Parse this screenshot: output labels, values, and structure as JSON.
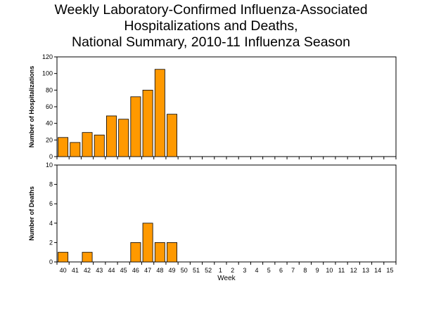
{
  "title_lines": [
    "Weekly Laboratory-Confirmed Influenza-Associated",
    "Hospitalizations and Deaths,",
    "National Summary, 2010-11 Influenza Season"
  ],
  "colors": {
    "bar_fill": "#FF9900",
    "bar_stroke": "#000000",
    "plot_border": "#000000"
  },
  "chart_data": [
    {
      "type": "bar",
      "title": "",
      "xlabel": "",
      "ylabel": "Number of Hospitalizations",
      "ylim": [
        0,
        120
      ],
      "yticks": [
        0,
        20,
        40,
        60,
        80,
        100,
        120
      ],
      "categories": [
        "40",
        "41",
        "42",
        "43",
        "44",
        "45",
        "46",
        "47",
        "48",
        "49",
        "50",
        "51",
        "52",
        "1",
        "2",
        "3",
        "4",
        "5",
        "6",
        "7",
        "8",
        "9",
        "10",
        "11",
        "12",
        "13",
        "14",
        "15"
      ],
      "values": [
        23,
        17,
        29,
        26,
        49,
        45,
        72,
        80,
        105,
        51,
        null,
        null,
        null,
        null,
        null,
        null,
        null,
        null,
        null,
        null,
        null,
        null,
        null,
        null,
        null,
        null,
        null,
        null
      ],
      "grid": false
    },
    {
      "type": "bar",
      "title": "",
      "xlabel": "Week",
      "ylabel": "Number of Deaths",
      "ylim": [
        0,
        10
      ],
      "yticks": [
        0,
        2,
        4,
        6,
        8,
        10
      ],
      "categories": [
        "40",
        "41",
        "42",
        "43",
        "44",
        "45",
        "46",
        "47",
        "48",
        "49",
        "50",
        "51",
        "52",
        "1",
        "2",
        "3",
        "4",
        "5",
        "6",
        "7",
        "8",
        "9",
        "10",
        "11",
        "12",
        "13",
        "14",
        "15"
      ],
      "values": [
        1,
        0,
        1,
        0,
        0,
        0,
        2,
        4,
        2,
        2,
        null,
        null,
        null,
        null,
        null,
        null,
        null,
        null,
        null,
        null,
        null,
        null,
        null,
        null,
        null,
        null,
        null,
        null
      ],
      "grid": false
    }
  ]
}
